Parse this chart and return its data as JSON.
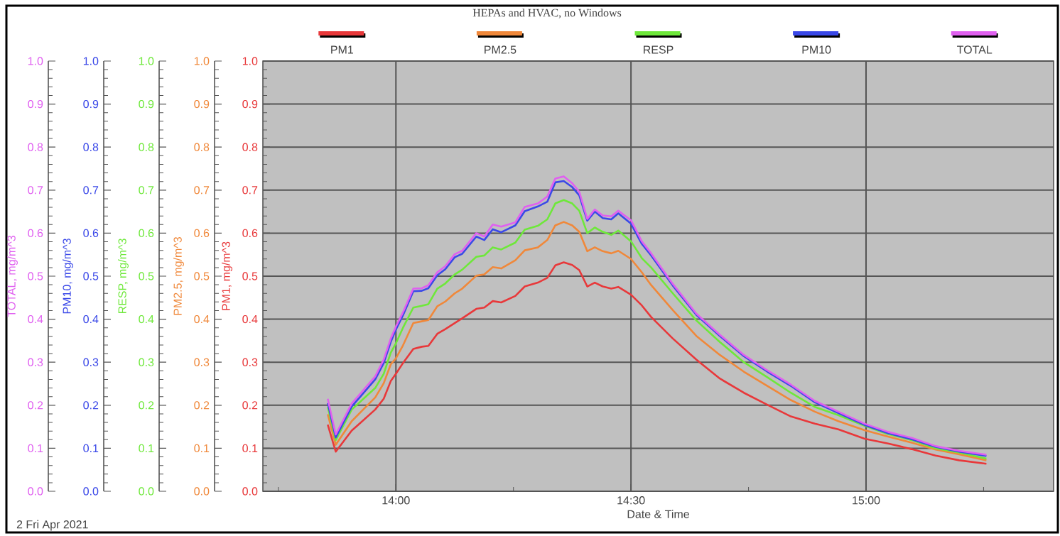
{
  "chart_data": {
    "type": "line",
    "title": "HEPAs and HVAC, no Windows",
    "xlabel": "Date & Time",
    "annotations": [
      "2 Fri Apr 2021",
      "PM1, mg/m^3",
      "PM2.5, mg/m^3",
      "RESP, mg/m^3",
      "PM10, mg/m^3",
      "TOTAL, mg/m^3"
    ],
    "x": [
      13.855,
      13.872,
      13.906,
      13.956,
      13.974,
      13.989,
      14.0,
      14.015,
      14.037,
      14.055,
      14.069,
      14.088,
      14.105,
      14.125,
      14.141,
      14.171,
      14.188,
      14.206,
      14.224,
      14.254,
      14.274,
      14.302,
      14.322,
      14.339,
      14.357,
      14.375,
      14.39,
      14.407,
      14.423,
      14.44,
      14.458,
      14.473,
      14.5,
      14.523,
      14.543,
      14.589,
      14.639,
      14.689,
      14.74,
      14.79,
      14.84,
      14.891,
      14.941,
      14.997,
      15.047,
      15.097,
      15.148,
      15.198,
      15.256
    ],
    "series": [
      {
        "name": "PM1",
        "color": "#e8383a",
        "values": [
          0.155,
          0.092,
          0.141,
          0.19,
          0.215,
          0.256,
          0.273,
          0.298,
          0.331,
          0.336,
          0.338,
          0.366,
          0.377,
          0.391,
          0.402,
          0.424,
          0.427,
          0.442,
          0.439,
          0.454,
          0.476,
          0.485,
          0.496,
          0.525,
          0.532,
          0.526,
          0.514,
          0.476,
          0.485,
          0.476,
          0.471,
          0.475,
          0.457,
          0.432,
          0.405,
          0.355,
          0.306,
          0.262,
          0.229,
          0.201,
          0.174,
          0.157,
          0.144,
          0.122,
          0.111,
          0.098,
          0.083,
          0.072,
          0.064
        ]
      },
      {
        "name": "PM2.5",
        "color": "#f0883a",
        "values": [
          0.179,
          0.108,
          0.163,
          0.218,
          0.251,
          0.295,
          0.309,
          0.339,
          0.391,
          0.395,
          0.398,
          0.43,
          0.441,
          0.46,
          0.471,
          0.501,
          0.504,
          0.521,
          0.518,
          0.537,
          0.56,
          0.567,
          0.584,
          0.618,
          0.626,
          0.618,
          0.603,
          0.558,
          0.567,
          0.558,
          0.553,
          0.559,
          0.54,
          0.509,
          0.479,
          0.421,
          0.361,
          0.317,
          0.278,
          0.245,
          0.212,
          0.185,
          0.163,
          0.142,
          0.127,
          0.113,
          0.097,
          0.086,
          0.072
        ]
      },
      {
        "name": "RESP",
        "color": "#6ee83a",
        "values": [
          0.196,
          0.119,
          0.19,
          0.24,
          0.273,
          0.322,
          0.344,
          0.38,
          0.427,
          0.431,
          0.435,
          0.471,
          0.483,
          0.504,
          0.515,
          0.545,
          0.548,
          0.567,
          0.562,
          0.578,
          0.608,
          0.617,
          0.632,
          0.669,
          0.677,
          0.669,
          0.652,
          0.6,
          0.613,
          0.603,
          0.596,
          0.606,
          0.581,
          0.542,
          0.52,
          0.46,
          0.397,
          0.347,
          0.3,
          0.265,
          0.229,
          0.196,
          0.177,
          0.152,
          0.133,
          0.119,
          0.1,
          0.09,
          0.076
        ]
      },
      {
        "name": "PM10",
        "color": "#3a48e8",
        "values": [
          0.205,
          0.125,
          0.197,
          0.26,
          0.298,
          0.347,
          0.376,
          0.409,
          0.465,
          0.466,
          0.472,
          0.502,
          0.516,
          0.544,
          0.552,
          0.592,
          0.584,
          0.609,
          0.602,
          0.618,
          0.651,
          0.662,
          0.673,
          0.718,
          0.721,
          0.707,
          0.688,
          0.629,
          0.65,
          0.635,
          0.632,
          0.646,
          0.622,
          0.575,
          0.548,
          0.478,
          0.41,
          0.361,
          0.314,
          0.278,
          0.245,
          0.207,
          0.182,
          0.154,
          0.135,
          0.121,
          0.103,
          0.092,
          0.082
        ]
      },
      {
        "name": "TOTAL",
        "color": "#e060f0",
        "values": [
          0.215,
          0.132,
          0.204,
          0.267,
          0.306,
          0.355,
          0.383,
          0.416,
          0.471,
          0.472,
          0.479,
          0.509,
          0.523,
          0.551,
          0.559,
          0.6,
          0.592,
          0.62,
          0.615,
          0.625,
          0.661,
          0.669,
          0.685,
          0.727,
          0.732,
          0.716,
          0.696,
          0.633,
          0.655,
          0.641,
          0.639,
          0.652,
          0.63,
          0.581,
          0.553,
          0.482,
          0.413,
          0.364,
          0.317,
          0.281,
          0.248,
          0.21,
          0.185,
          0.157,
          0.138,
          0.124,
          0.105,
          0.094,
          0.085
        ]
      }
    ],
    "xlim": [
      13.717,
      15.399
    ],
    "xticks": [
      {
        "value": 13.75,
        "label": null
      },
      {
        "value": 14,
        "label": "14:00"
      },
      {
        "value": 14.25,
        "label": null
      },
      {
        "value": 14.5,
        "label": "14:30"
      },
      {
        "value": 14.75,
        "label": null
      },
      {
        "value": 15,
        "label": "15:00"
      },
      {
        "value": 15.25,
        "label": null
      }
    ],
    "ylim": [
      0,
      1
    ],
    "yticks": [
      {
        "value": 0,
        "label": "0.0"
      },
      {
        "value": 0.1,
        "label": "0.1"
      },
      {
        "value": 0.2,
        "label": "0.2"
      },
      {
        "value": 0.3,
        "label": "0.3"
      },
      {
        "value": 0.4,
        "label": "0.4"
      },
      {
        "value": 0.5,
        "label": "0.5"
      },
      {
        "value": 0.6,
        "label": "0.6"
      },
      {
        "value": 0.7,
        "label": "0.7"
      },
      {
        "value": 0.8,
        "label": "0.8"
      },
      {
        "value": 0.9,
        "label": "0.9"
      },
      {
        "value": 1,
        "label": "1.0"
      }
    ],
    "grid": true,
    "legend": "top"
  }
}
